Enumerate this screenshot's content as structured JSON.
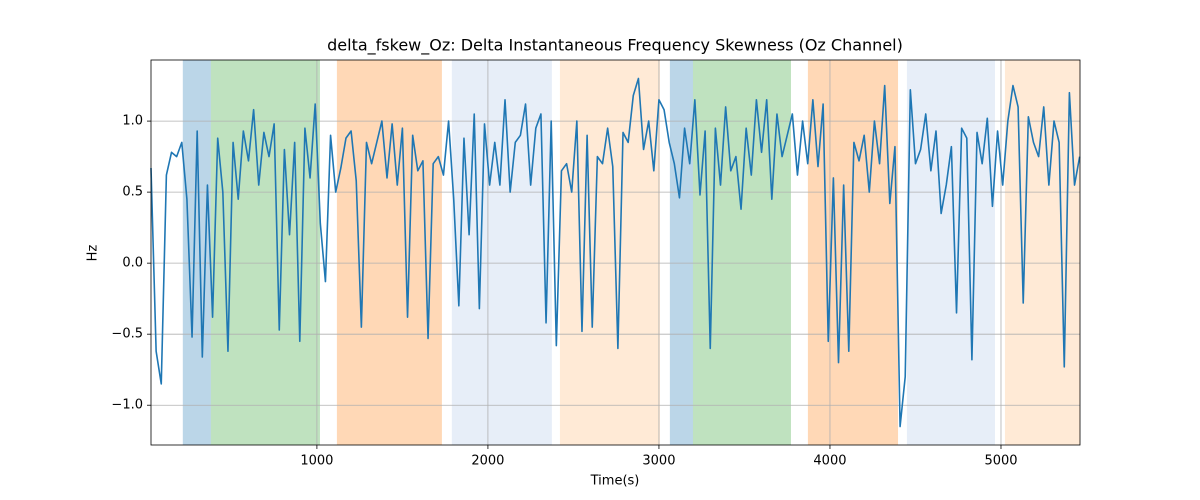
{
  "chart_data": {
    "type": "line",
    "title": "delta_fskew_Oz: Delta Instantaneous Frequency Skewness (Oz Channel)",
    "x_label": "Time(s)",
    "y_label": "Hz",
    "xlim": [
      30,
      5462
    ],
    "ylim": [
      -1.28,
      1.43
    ],
    "xticks": [
      1000,
      2000,
      3000,
      4000,
      5000
    ],
    "yticks": [
      {
        "value": -1.0,
        "label": "−1.0"
      },
      {
        "value": -0.5,
        "label": "−0.5"
      },
      {
        "value": 0.0,
        "label": "0.0"
      },
      0.5,
      {
        "value": 1.0,
        "label": "1.0"
      }
    ],
    "grid": true,
    "span_alpha": 0.3,
    "spans": [
      {
        "x": [
          216,
          380
        ],
        "color": "#1f77b4"
      },
      {
        "x": [
          380,
          1018
        ],
        "color": "#2ca02c"
      },
      {
        "x": [
          1117,
          1731
        ],
        "color": "#ff7f0e"
      },
      {
        "x": [
          1789,
          2374
        ],
        "color": "#aec7e8"
      },
      {
        "x": [
          2421,
          3006
        ],
        "color": "#ffbb78"
      },
      {
        "x": [
          3064,
          3199
        ],
        "color": "#1f77b4"
      },
      {
        "x": [
          3199,
          3772
        ],
        "color": "#2ca02c"
      },
      {
        "x": [
          3871,
          4398
        ],
        "color": "#ff7f0e"
      },
      {
        "x": [
          4450,
          4965
        ],
        "color": "#aec7e8"
      },
      {
        "x": [
          5023,
          5462
        ],
        "color": "#ffbb78"
      }
    ],
    "x": [
      30,
      60,
      90,
      120,
      150,
      180,
      210,
      240,
      270,
      300,
      330,
      360,
      390,
      420,
      450,
      480,
      510,
      540,
      570,
      600,
      630,
      660,
      690,
      720,
      750,
      780,
      810,
      840,
      870,
      900,
      930,
      960,
      990,
      1020,
      1050,
      1080,
      1110,
      1140,
      1170,
      1200,
      1230,
      1260,
      1290,
      1320,
      1350,
      1380,
      1410,
      1440,
      1470,
      1500,
      1530,
      1560,
      1590,
      1620,
      1650,
      1680,
      1710,
      1740,
      1770,
      1800,
      1830,
      1860,
      1890,
      1920,
      1950,
      1980,
      2010,
      2040,
      2070,
      2100,
      2130,
      2160,
      2190,
      2220,
      2250,
      2280,
      2310,
      2340,
      2370,
      2400,
      2430,
      2460,
      2490,
      2520,
      2550,
      2580,
      2610,
      2640,
      2670,
      2700,
      2730,
      2760,
      2790,
      2820,
      2850,
      2880,
      2910,
      2940,
      2970,
      3000,
      3030,
      3060,
      3090,
      3120,
      3150,
      3180,
      3210,
      3240,
      3270,
      3300,
      3330,
      3360,
      3390,
      3420,
      3450,
      3480,
      3510,
      3540,
      3570,
      3600,
      3630,
      3660,
      3690,
      3720,
      3750,
      3780,
      3810,
      3840,
      3870,
      3900,
      3930,
      3960,
      3990,
      4020,
      4050,
      4080,
      4110,
      4140,
      4170,
      4200,
      4230,
      4260,
      4290,
      4320,
      4350,
      4380,
      4410,
      4440,
      4470,
      4500,
      4530,
      4560,
      4590,
      4620,
      4650,
      4680,
      4710,
      4740,
      4770,
      4800,
      4830,
      4860,
      4890,
      4920,
      4950,
      4980,
      5010,
      5040,
      5070,
      5100,
      5130,
      5160,
      5190,
      5220,
      5250,
      5280,
      5310,
      5340,
      5370,
      5400,
      5430,
      5460
    ],
    "series": [
      {
        "color": "#1f77b4",
        "values": [
          0.67,
          -0.62,
          -0.85,
          0.62,
          0.78,
          0.75,
          0.85,
          0.45,
          -0.52,
          0.93,
          -0.66,
          0.55,
          -0.38,
          0.88,
          0.5,
          -0.62,
          0.85,
          0.45,
          0.93,
          0.72,
          1.08,
          0.55,
          0.92,
          0.75,
          0.98,
          -0.47,
          0.8,
          0.2,
          0.85,
          -0.55,
          0.95,
          0.6,
          1.12,
          0.28,
          -0.13,
          0.9,
          0.5,
          0.67,
          0.88,
          0.93,
          0.58,
          -0.45,
          0.85,
          0.7,
          0.85,
          1.0,
          0.6,
          0.98,
          0.55,
          0.95,
          -0.38,
          0.9,
          0.65,
          0.72,
          -0.53,
          0.7,
          0.75,
          0.62,
          1.0,
          0.45,
          -0.3,
          0.88,
          0.2,
          1.05,
          -0.32,
          0.98,
          0.55,
          0.85,
          0.55,
          1.15,
          0.5,
          0.85,
          0.9,
          1.12,
          0.55,
          0.95,
          1.05,
          -0.42,
          1.0,
          -0.58,
          0.65,
          0.7,
          0.5,
          1.0,
          -0.48,
          0.9,
          -0.45,
          0.75,
          0.7,
          0.95,
          0.68,
          -0.6,
          0.92,
          0.85,
          1.18,
          1.3,
          0.8,
          1.0,
          0.65,
          1.15,
          1.08,
          0.85,
          0.7,
          0.46,
          0.95,
          0.7,
          1.15,
          0.48,
          0.93,
          -0.6,
          0.95,
          0.55,
          1.1,
          0.65,
          0.75,
          0.38,
          0.95,
          0.62,
          1.15,
          0.78,
          1.15,
          0.45,
          1.05,
          0.75,
          0.9,
          1.05,
          0.62,
          1.0,
          0.7,
          1.15,
          0.68,
          1.12,
          -0.55,
          0.6,
          -0.7,
          0.55,
          -0.62,
          0.85,
          0.72,
          0.9,
          0.5,
          1.0,
          0.7,
          1.25,
          0.42,
          0.82,
          -1.15,
          -0.8,
          1.22,
          0.7,
          0.8,
          1.05,
          0.65,
          0.93,
          0.35,
          0.55,
          0.82,
          -0.35,
          0.95,
          0.88,
          -0.68,
          0.92,
          0.7,
          1.02,
          0.4,
          0.93,
          0.55,
          1.0,
          1.25,
          1.1,
          -0.28,
          1.03,
          0.85,
          0.75,
          1.1,
          0.55,
          1.0,
          0.85,
          -0.73,
          1.2,
          0.55,
          0.75
        ]
      }
    ]
  }
}
